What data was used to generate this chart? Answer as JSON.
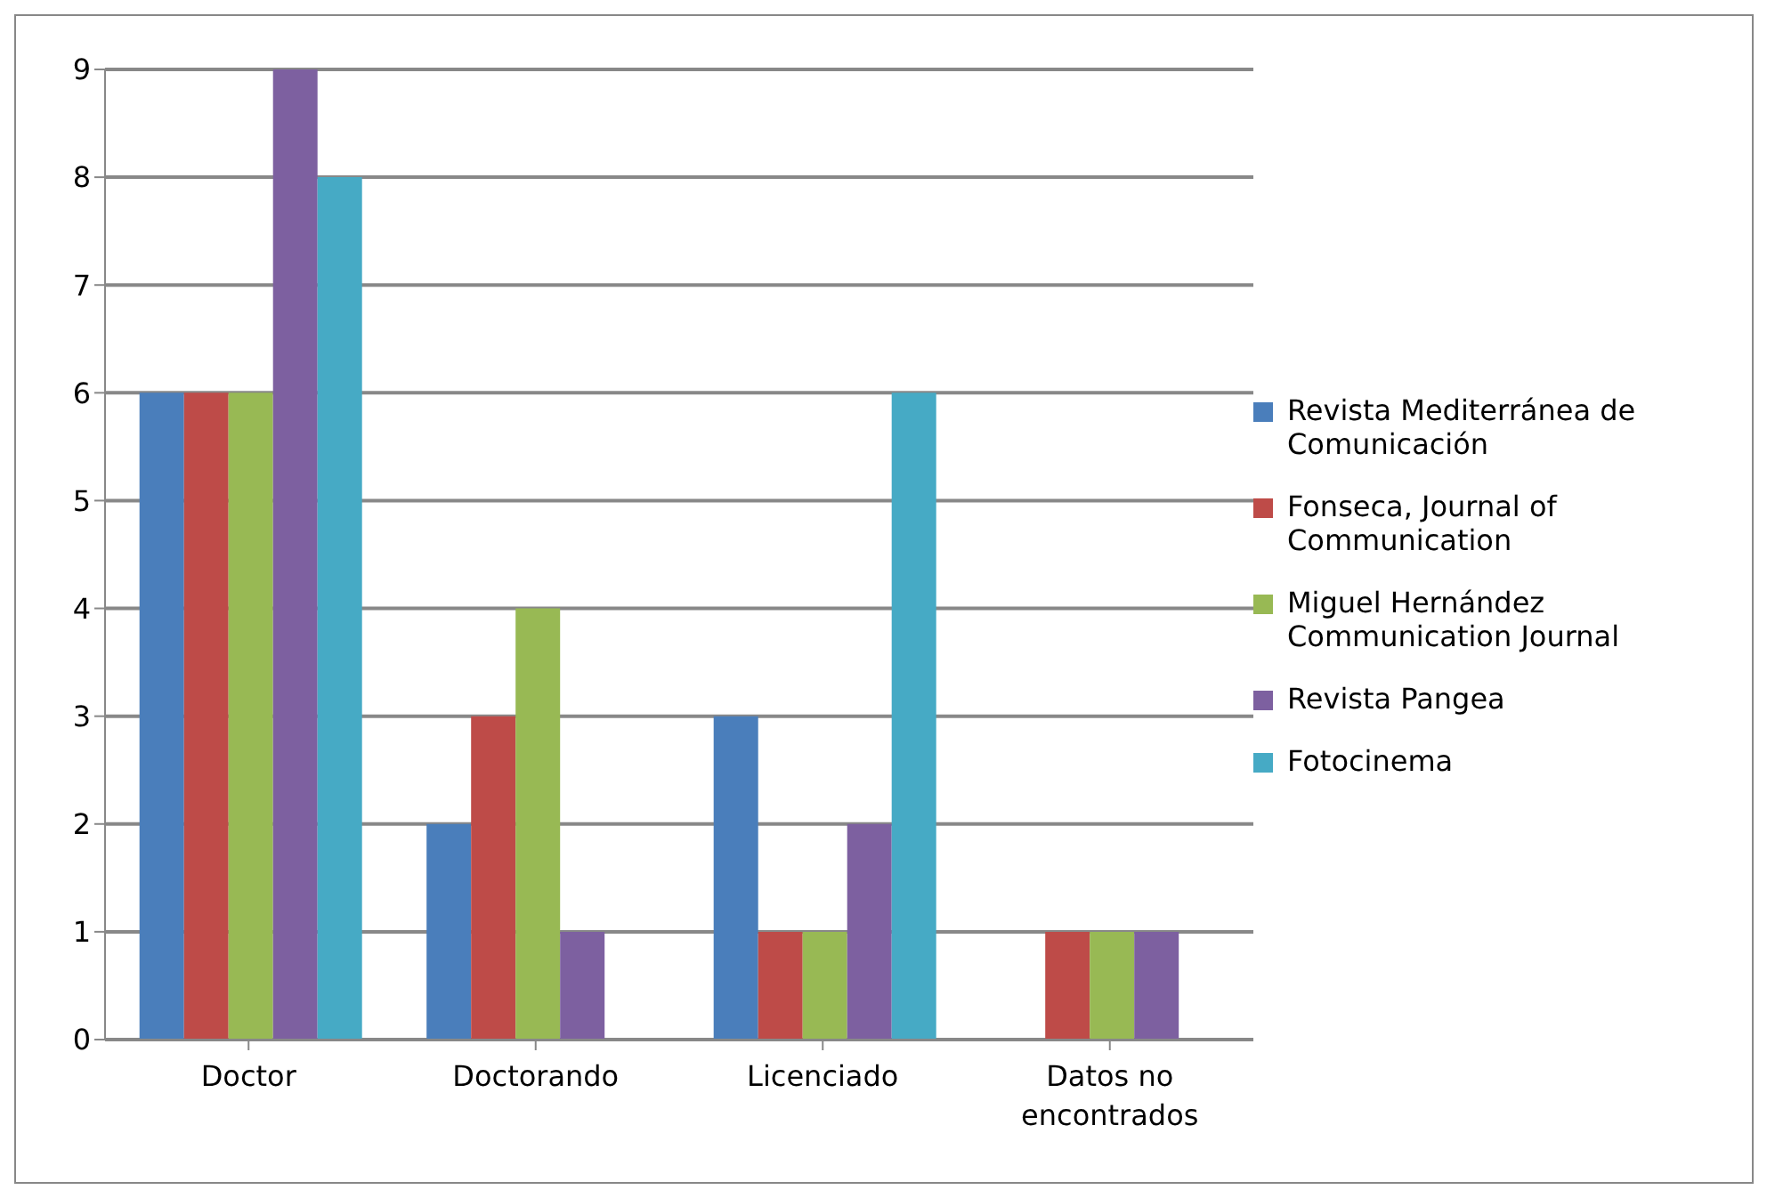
{
  "chart_data": {
    "type": "bar",
    "categories": [
      "Doctor",
      "Doctorando",
      "Licenciado",
      "Datos no encontrados"
    ],
    "series": [
      {
        "name": "Revista Mediterránea de Comunicación",
        "color": "#4a7ebb",
        "values": [
          6,
          2,
          3,
          0
        ]
      },
      {
        "name": "Fonseca, Journal of Communication",
        "color": "#be4b48",
        "values": [
          6,
          3,
          1,
          1
        ]
      },
      {
        "name": "Miguel Hernández Communication Journal",
        "color": "#98b954",
        "values": [
          6,
          4,
          1,
          1
        ]
      },
      {
        "name": "Revista Pangea",
        "color": "#7d60a0",
        "values": [
          9,
          1,
          2,
          1
        ]
      },
      {
        "name": "Fotocinema",
        "color": "#46aac5",
        "values": [
          8,
          0,
          6,
          0
        ]
      }
    ],
    "ylim": [
      0,
      9
    ],
    "yticks": [
      0,
      1,
      2,
      3,
      4,
      5,
      6,
      7,
      8,
      9
    ],
    "grid": "y",
    "legend": "right"
  }
}
